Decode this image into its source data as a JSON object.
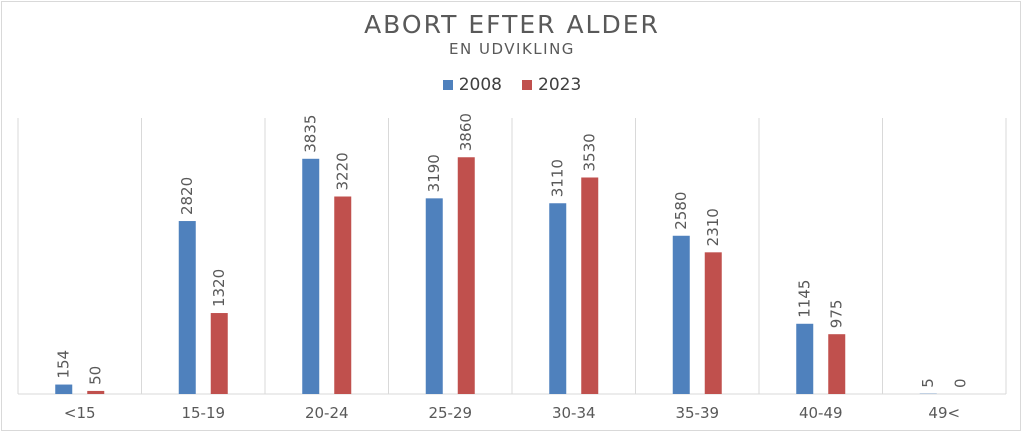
{
  "chart_data": {
    "type": "bar",
    "title": "ABORT EFTER ALDER",
    "subtitle": "EN UDVIKLING",
    "categories": [
      "<15",
      "15-19",
      "20-24",
      "25-29",
      "30-34",
      "35-39",
      "40-49",
      "49<"
    ],
    "series": [
      {
        "name": "2008",
        "color": "#4f81bd",
        "values": [
          154,
          2820,
          3835,
          3190,
          3110,
          2580,
          1145,
          5
        ]
      },
      {
        "name": "2023",
        "color": "#c0504d",
        "values": [
          50,
          1320,
          3220,
          3860,
          3530,
          2310,
          975,
          0
        ]
      }
    ],
    "ylim": [
      0,
      4500
    ],
    "grid": "vertical category separators",
    "legend_position": "top"
  }
}
